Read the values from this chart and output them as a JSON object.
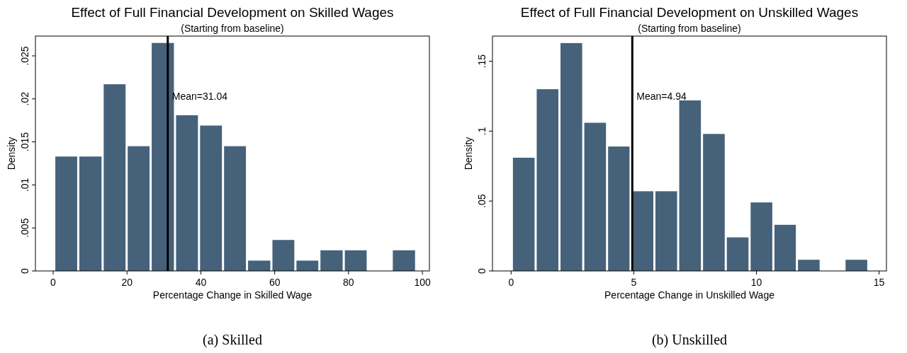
{
  "chart_data": [
    {
      "type": "histogram",
      "title": "Effect of Full Financial Development on Skilled Wages",
      "subtitle": "(Starting from baseline)",
      "xlabel": "Percentage Change in Skilled Wage",
      "ylabel": "Density",
      "color": "#46627a",
      "bins": [
        0.3,
        6.8,
        13.4,
        19.9,
        26.4,
        33.0,
        39.5,
        46.0,
        52.5,
        59.1,
        65.6,
        72.1,
        78.7,
        85.2,
        91.7,
        98.3
      ],
      "values": [
        0.0133,
        0.0133,
        0.0217,
        0.0145,
        0.0265,
        0.0181,
        0.0169,
        0.0145,
        0.0012,
        0.0036,
        0.0012,
        0.0024,
        0.0024,
        0,
        0.0024
      ],
      "xlim": [
        -4.8,
        101.9
      ],
      "xticks": [
        0,
        20,
        40,
        60,
        80,
        100
      ],
      "ylim": [
        0,
        0.0273
      ],
      "yticks": [
        {
          "value": 0,
          "label": "0"
        },
        {
          "value": 0.005,
          "label": ".005"
        },
        {
          "value": 0.01,
          "label": ".01"
        },
        {
          "value": 0.015,
          "label": ".015"
        },
        {
          "value": 0.02,
          "label": ".02"
        },
        {
          "value": 0.025,
          "label": ".025"
        }
      ],
      "ref_lines": [
        {
          "axis": "x",
          "value": 31.04,
          "label": "Mean=31.04",
          "color": "#000000"
        }
      ],
      "annotations": [
        "(a) Skilled"
      ]
    },
    {
      "type": "histogram",
      "title": "Effect of Full Financial Development on Unskilled Wages",
      "subtitle": "(Starting from baseline)",
      "xlabel": "Percentage Change in Unskilled Wage",
      "ylabel": "Density",
      "color": "#46627a",
      "bins": [
        0.03,
        1.0,
        1.97,
        2.94,
        3.91,
        4.87,
        5.84,
        6.81,
        7.78,
        8.75,
        9.72,
        10.69,
        11.65,
        12.62,
        13.59,
        14.56
      ],
      "values": [
        0.081,
        0.13,
        0.163,
        0.106,
        0.089,
        0.057,
        0.057,
        0.122,
        0.098,
        0.024,
        0.049,
        0.033,
        0.008,
        0,
        0.008
      ],
      "xlim": [
        -0.76,
        15.3
      ],
      "xticks": [
        0,
        5,
        10,
        15
      ],
      "ylim": [
        0,
        0.168
      ],
      "yticks": [
        {
          "value": 0,
          "label": "0"
        },
        {
          "value": 0.05,
          "label": ".05"
        },
        {
          "value": 0.1,
          "label": ".1"
        },
        {
          "value": 0.15,
          "label": ".15"
        }
      ],
      "ref_lines": [
        {
          "axis": "x",
          "value": 4.94,
          "label": "Mean=4.94",
          "color": "#000000"
        }
      ],
      "annotations": [
        "(b) Unskilled"
      ]
    }
  ]
}
